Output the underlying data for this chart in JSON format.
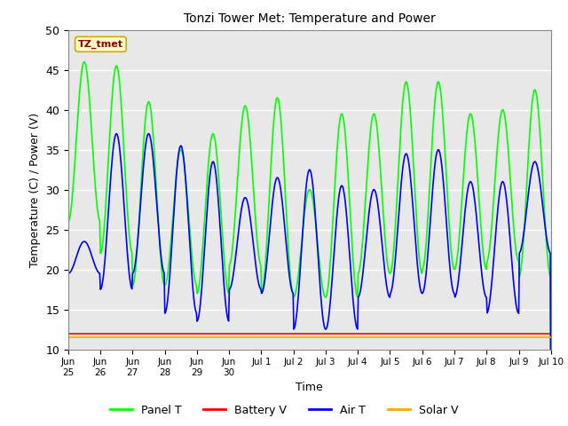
{
  "title": "Tonzi Tower Met: Temperature and Power",
  "xlabel": "Time",
  "ylabel": "Temperature (C) / Power (V)",
  "ylim": [
    10,
    50
  ],
  "annotation": "TZ_tmet",
  "bg_color": "#e8e8e8",
  "fig_color": "#ffffff",
  "grid_color": "white",
  "panel_t_peaks": [
    46,
    45.5,
    41,
    35,
    37,
    40.5,
    41.5,
    30,
    39.5,
    39.5,
    43.5,
    43.5,
    39.5,
    40,
    42.5
  ],
  "panel_t_mins": [
    26,
    22,
    18,
    18,
    17,
    20.5,
    17,
    16.5,
    16.5,
    19.5,
    19.5,
    20,
    20,
    21,
    19
  ],
  "air_t_peaks": [
    23.5,
    37,
    37,
    35.5,
    33.5,
    29,
    31.5,
    32.5,
    30.5,
    30,
    34.5,
    35,
    31,
    31,
    33.5
  ],
  "air_t_mins": [
    19.5,
    17.5,
    19.5,
    14.5,
    13.5,
    17.5,
    17,
    12.5,
    12.5,
    16.5,
    17,
    17,
    16.5,
    14.5,
    22
  ],
  "battery_v_level": 12.0,
  "solar_v_level": 11.5,
  "series_colors": {
    "Panel T": "#00ff00",
    "Battery V": "#ff0000",
    "Air T": "#0000ff",
    "Solar V": "#ffaa00"
  },
  "tick_labels": [
    "Jun\n25",
    "Jun\n26",
    "Jun\n27",
    "Jun\n28",
    "Jun\n29",
    "Jun\n30",
    "Jul 1",
    "Jul 2",
    "Jul 3",
    "Jul 4",
    "Jul 5",
    "Jul 6",
    "Jul 7",
    "Jul 8",
    "Jul 9",
    "Jul 10"
  ]
}
